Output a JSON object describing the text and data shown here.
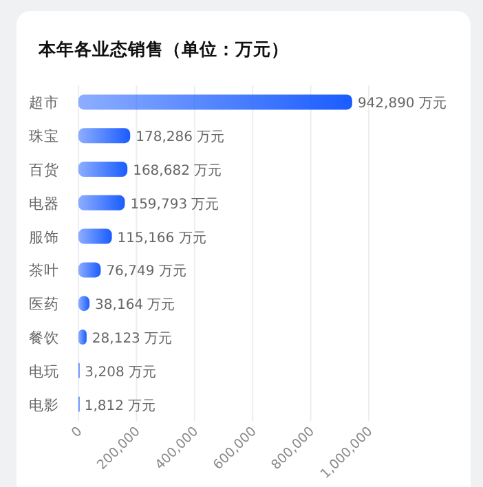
{
  "chart_data": {
    "type": "bar",
    "orientation": "horizontal",
    "title": "本年各业态销售（单位：万元）",
    "categories": [
      "超市",
      "珠宝",
      "百货",
      "电器",
      "服饰",
      "茶叶",
      "医药",
      "餐饮",
      "电玩",
      "电影"
    ],
    "values": [
      942890,
      178286,
      168682,
      159793,
      115166,
      76749,
      38164,
      28123,
      3208,
      1812
    ],
    "value_labels": [
      "942,890 万元",
      "178,286 万元",
      "168,682 万元",
      "159,793 万元",
      "115,166 万元",
      "76,749 万元",
      "38,164 万元",
      "28,123 万元",
      "3,208 万元",
      "1,812 万元"
    ],
    "color": "#1a5cff",
    "xlim": [
      0,
      1000000
    ],
    "xticks": [
      0,
      {
        "value": 200000,
        "label": "200,000"
      },
      {
        "value": 400000,
        "label": "400,000"
      },
      {
        "value": 600000,
        "label": "600,000"
      },
      {
        "value": 800000,
        "label": "800,000"
      },
      {
        "value": 1000000,
        "label": "1,000,000"
      }
    ],
    "grid": "x"
  }
}
